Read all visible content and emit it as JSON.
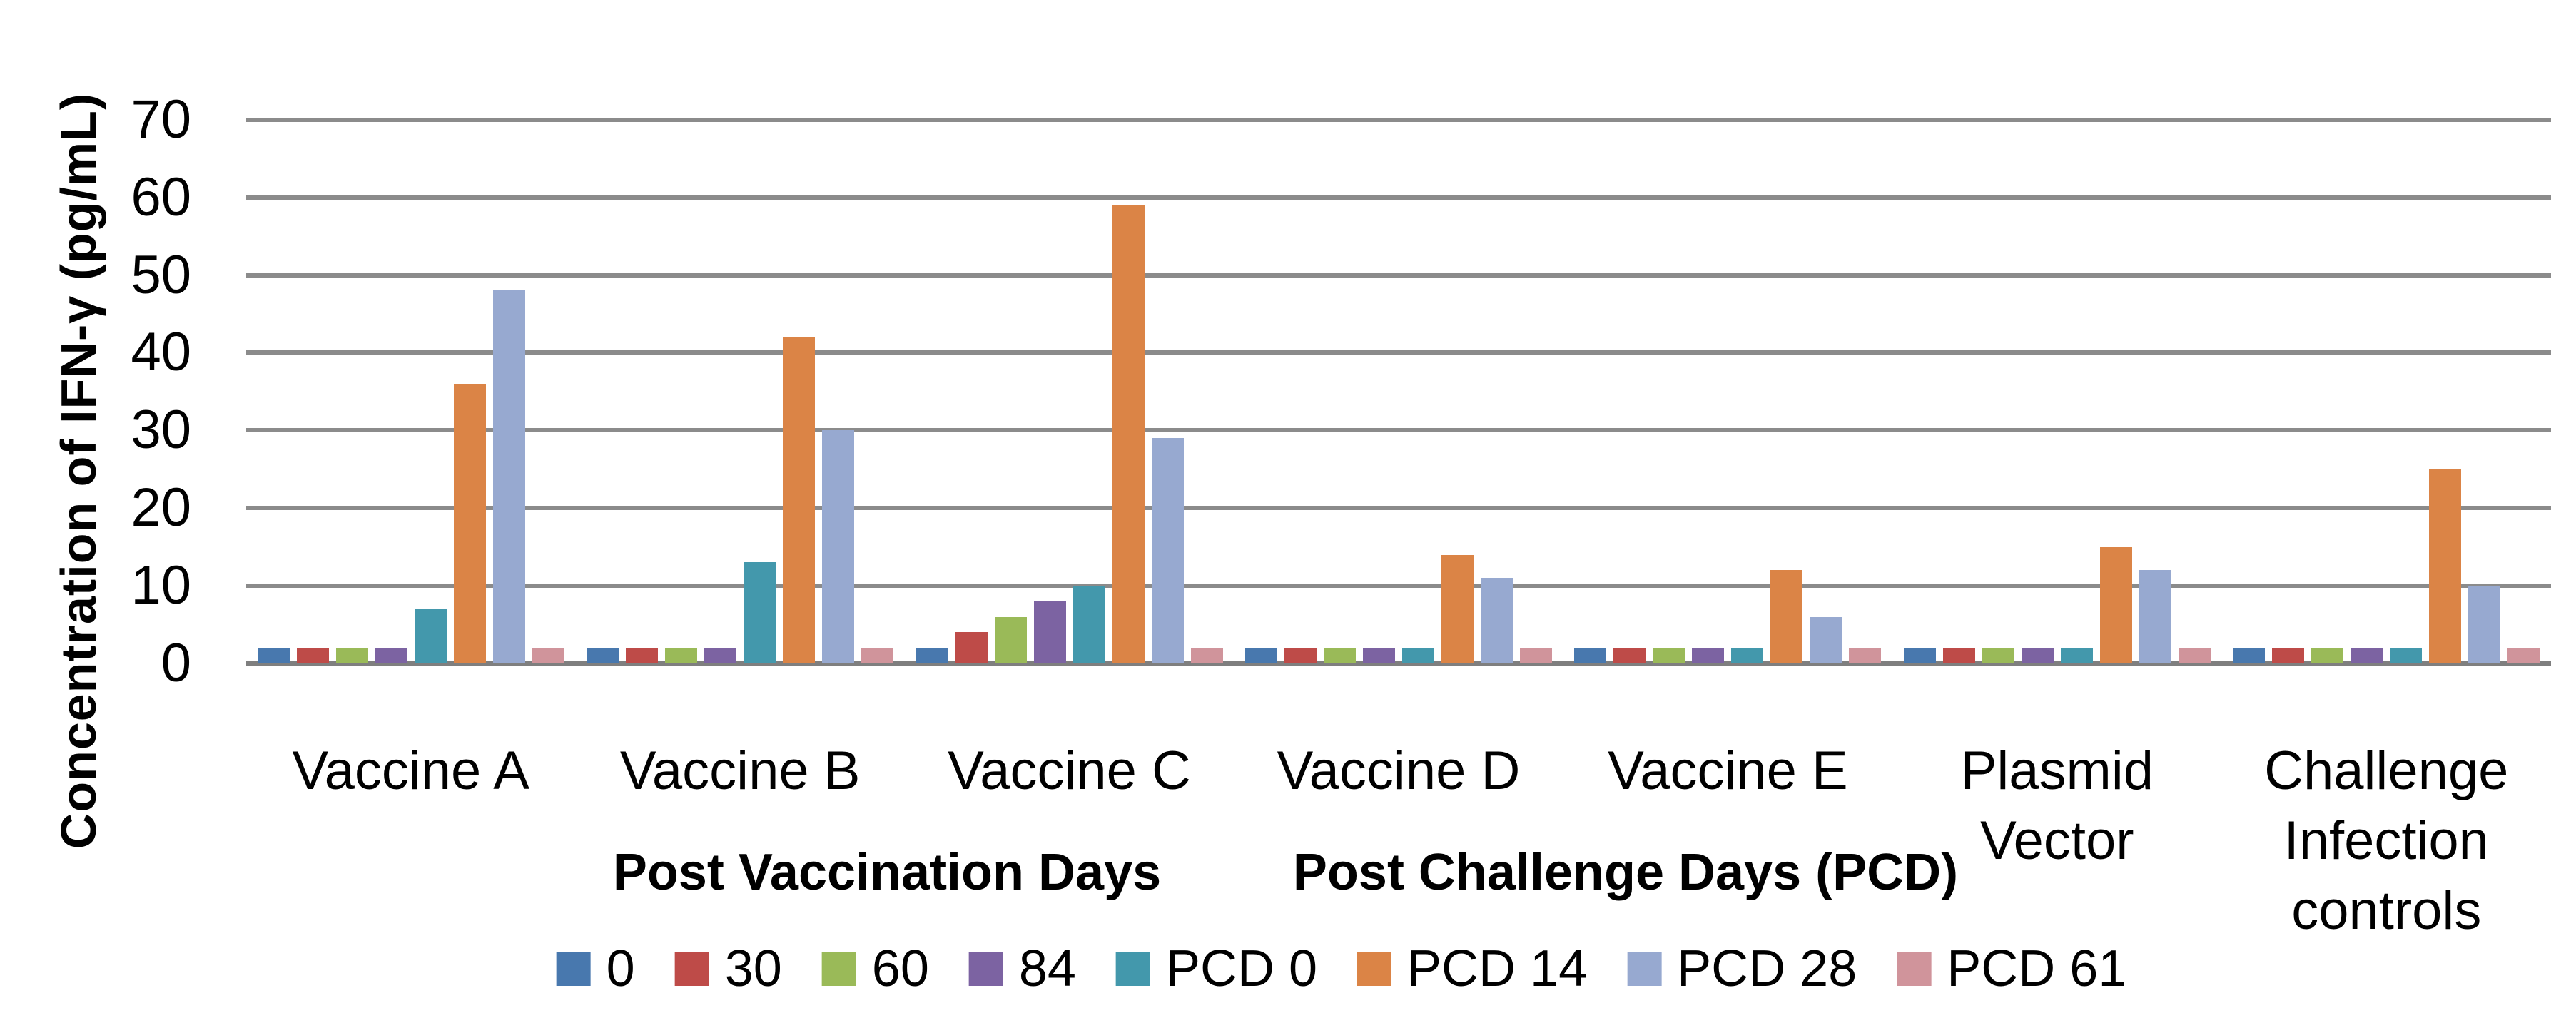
{
  "chart_data": {
    "type": "bar",
    "title": "",
    "ylabel": "Concentration of IFN-γ (pg/mL)",
    "xlabel": "",
    "axis_group_labels": [
      {
        "label": "Post Vaccination Days"
      },
      {
        "label": "Post Challenge Days (PCD)"
      }
    ],
    "categories": [
      "Vaccine A",
      "Vaccine B",
      "Vaccine C",
      "Vaccine D",
      "Vaccine E",
      "Plasmid Vector",
      "Challenge Infection controls"
    ],
    "series": [
      {
        "name": "0",
        "color": "#4878ae",
        "values": [
          2,
          2,
          2,
          2,
          2,
          2,
          2
        ]
      },
      {
        "name": "30",
        "color": "#be4b48",
        "values": [
          2,
          2,
          4,
          2,
          2,
          2,
          2
        ]
      },
      {
        "name": "60",
        "color": "#9aba58",
        "values": [
          2,
          2,
          6,
          2,
          2,
          2,
          2
        ]
      },
      {
        "name": "84",
        "color": "#7c63a2",
        "values": [
          2,
          2,
          8,
          2,
          2,
          2,
          2
        ]
      },
      {
        "name": "PCD 0",
        "color": "#4398ac",
        "values": [
          7,
          13,
          10,
          2,
          2,
          2,
          2
        ]
      },
      {
        "name": "PCD 14",
        "color": "#db8446",
        "values": [
          36,
          42,
          59,
          14,
          12,
          15,
          25
        ]
      },
      {
        "name": "PCD 28",
        "color": "#97a9d0",
        "values": [
          48,
          30,
          29,
          11,
          6,
          12,
          10
        ]
      },
      {
        "name": "PCD 61",
        "color": "#d0949b",
        "values": [
          2,
          2,
          2,
          2,
          2,
          2,
          2
        ]
      }
    ],
    "yticks": [
      0,
      10,
      20,
      30,
      40,
      50,
      60,
      70
    ],
    "ylim": [
      0,
      70
    ],
    "grid": true,
    "gridline_color": "#8b8b8b",
    "axis_line_color": "#7f7f7f",
    "legend_position": "bottom"
  }
}
